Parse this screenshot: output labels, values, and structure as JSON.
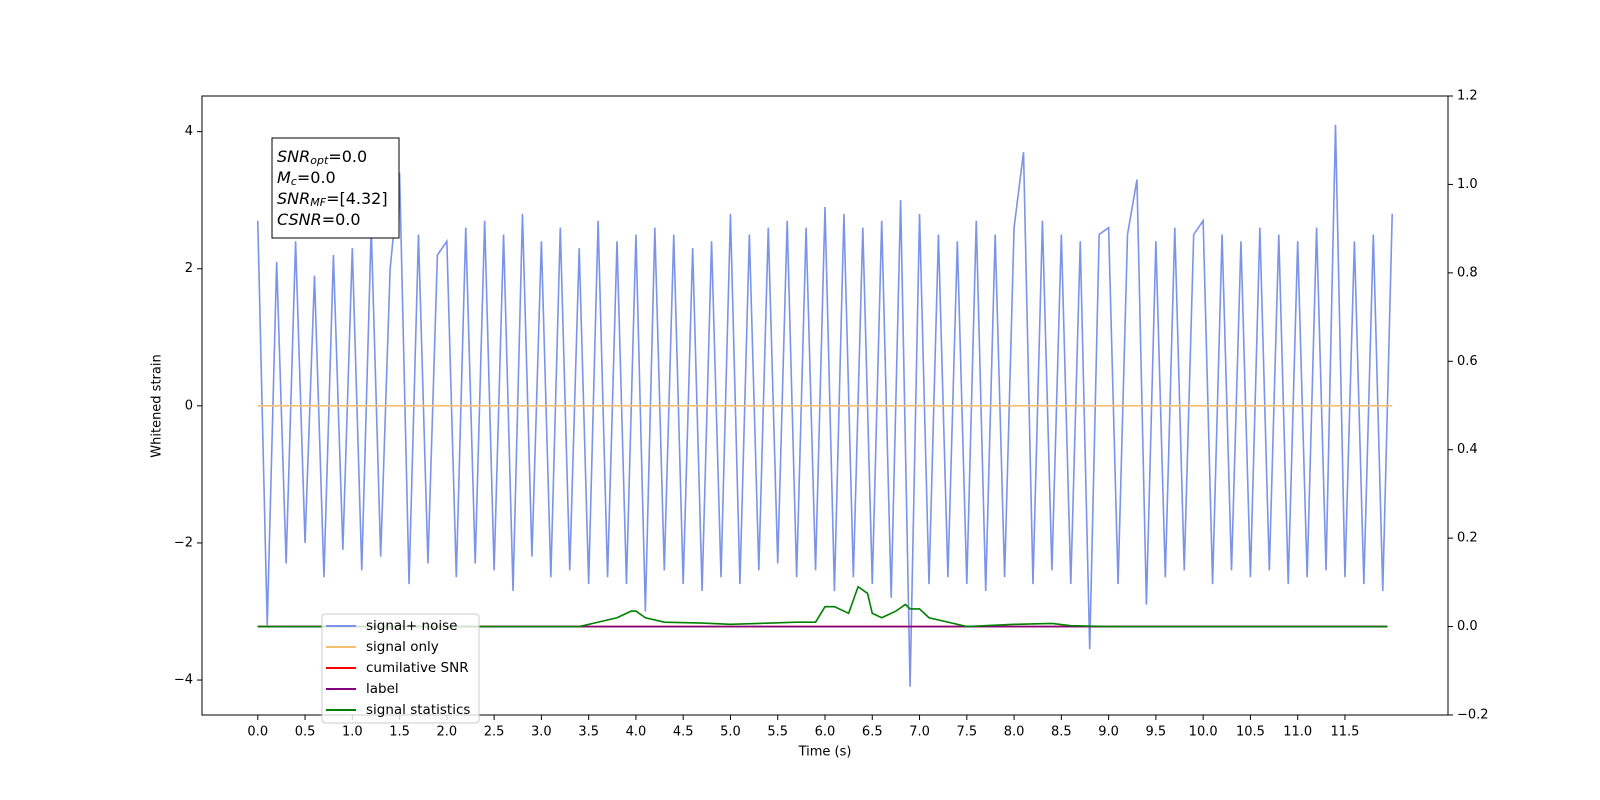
{
  "chart_data": {
    "type": "line",
    "xlabel": "Time (s)",
    "ylabel": "Whitened strain",
    "xlim": [
      -0.59,
      12.59
    ],
    "ylim": [
      -4.51,
      4.52
    ],
    "y2lim": [
      -0.2,
      1.2
    ],
    "xticks": [
      {
        "value": 0,
        "label": "0.0"
      },
      0.5,
      {
        "value": 1,
        "label": "1.0"
      },
      1.5,
      {
        "value": 2,
        "label": "2.0"
      },
      2.5,
      {
        "value": 3,
        "label": "3.0"
      },
      3.5,
      {
        "value": 4,
        "label": "4.0"
      },
      4.5,
      {
        "value": 5,
        "label": "5.0"
      },
      5.5,
      {
        "value": 6,
        "label": "6.0"
      },
      6.5,
      {
        "value": 7,
        "label": "7.0"
      },
      7.5,
      {
        "value": 8,
        "label": "8.0"
      },
      8.5,
      {
        "value": 9,
        "label": "9.0"
      },
      9.5,
      {
        "value": 10,
        "label": "10.0"
      },
      10.5,
      {
        "value": 11,
        "label": "11.0"
      },
      11.5
    ],
    "yticks": [
      {
        "value": -4,
        "label": "−4"
      },
      {
        "value": -2,
        "label": "−2"
      },
      0,
      2,
      4
    ],
    "y2ticks": [
      {
        "value": -0.2,
        "label": "−0.2"
      },
      {
        "value": 0,
        "label": "0.0"
      },
      0.2,
      0.4,
      0.6,
      0.8,
      {
        "value": 1,
        "label": "1.0"
      },
      1.2
    ],
    "legend": "lower left",
    "annotation": [
      {
        "base": "SNR",
        "sub": "opt",
        "text": "=0.0"
      },
      {
        "base": "M",
        "sub": "c",
        "text": "=0.0"
      },
      {
        "base": "SNR",
        "sub": "MF",
        "text": "=[4.32]"
      },
      {
        "base": "CSNR",
        "text": "=0.0"
      }
    ],
    "series": [
      {
        "name": "signal+ noise",
        "color": "#7b93e8",
        "x": [
          0,
          0.1,
          0.2,
          0.3,
          0.4,
          0.5,
          0.6,
          0.7,
          0.8,
          0.9,
          1,
          1.1,
          1.2,
          1.3,
          1.4,
          1.5,
          1.6,
          1.7,
          1.8,
          1.9,
          2,
          2.1,
          2.2,
          2.3,
          2.4,
          2.5,
          2.6,
          2.7,
          2.8,
          2.9,
          3,
          3.1,
          3.2,
          3.3,
          3.4,
          3.5,
          3.6,
          3.7,
          3.8,
          3.9,
          4,
          4.1,
          4.2,
          4.3,
          4.4,
          4.5,
          4.6,
          4.7,
          4.8,
          4.9,
          5,
          5.1,
          5.2,
          5.3,
          5.4,
          5.5,
          5.6,
          5.7,
          5.8,
          5.9,
          6,
          6.1,
          6.2,
          6.3,
          6.4,
          6.5,
          6.6,
          6.7,
          6.8,
          6.9,
          7,
          7.1,
          7.2,
          7.3,
          7.4,
          7.5,
          7.6,
          7.7,
          7.8,
          7.9,
          8,
          8.1,
          8.2,
          8.3,
          8.4,
          8.5,
          8.6,
          8.7,
          8.8,
          8.9,
          9,
          9.1,
          9.2,
          9.3,
          9.4,
          9.5,
          9.6,
          9.7,
          9.8,
          9.9,
          10,
          10.1,
          10.2,
          10.3,
          10.4,
          10.5,
          10.6,
          10.7,
          10.8,
          10.9,
          11,
          11.1,
          11.2,
          11.3,
          11.4,
          11.5,
          11.6,
          11.7,
          11.8,
          11.9,
          12
        ],
        "values": [
          2.7,
          -3.2,
          2.1,
          -2.3,
          2.4,
          -2.0,
          1.9,
          -2.5,
          2.2,
          -2.1,
          2.3,
          -2.4,
          2.6,
          -2.2,
          2.0,
          3.4,
          -2.6,
          2.5,
          -2.3,
          2.2,
          2.4,
          -2.5,
          2.6,
          -2.3,
          2.7,
          -2.4,
          2.5,
          -2.7,
          2.8,
          -2.2,
          2.4,
          -2.5,
          2.6,
          -2.4,
          2.3,
          -2.6,
          2.7,
          -2.5,
          2.4,
          -2.6,
          2.5,
          -3.0,
          2.6,
          -2.4,
          2.5,
          -2.6,
          2.3,
          -2.7,
          2.4,
          -2.5,
          2.8,
          -2.6,
          2.5,
          -2.4,
          2.6,
          -2.3,
          2.7,
          -2.5,
          2.6,
          -2.4,
          2.9,
          -2.7,
          2.8,
          -2.5,
          2.6,
          -2.6,
          2.7,
          -2.8,
          3.0,
          -4.1,
          2.8,
          -2.6,
          2.5,
          -2.5,
          2.4,
          -2.6,
          2.7,
          -2.7,
          2.5,
          -2.5,
          2.6,
          3.7,
          -2.6,
          2.7,
          -2.4,
          2.5,
          -2.6,
          2.4,
          -3.55,
          2.5,
          2.6,
          -2.6,
          2.5,
          3.3,
          -2.9,
          2.4,
          -2.5,
          2.6,
          -2.4,
          2.5,
          2.7,
          -2.6,
          2.5,
          -2.4,
          2.4,
          -2.5,
          2.6,
          -2.4,
          2.5,
          -2.6,
          2.4,
          -2.5,
          2.6,
          -2.4,
          4.1,
          -2.5,
          2.4,
          -2.6,
          2.5,
          -2.7,
          2.8
        ]
      },
      {
        "name": "signal only",
        "color": "#f5c06e",
        "x": [
          0,
          12
        ],
        "values": [
          0,
          0
        ]
      },
      {
        "name": "cumilative SNR",
        "color": "#ff0000",
        "axis": "y2",
        "x": [
          0,
          11.95
        ],
        "values": [
          0,
          0
        ]
      },
      {
        "name": "label",
        "color": "#800080",
        "axis": "y2",
        "x": [
          0,
          11.95
        ],
        "values": [
          0,
          0
        ]
      },
      {
        "name": "signal statistics",
        "color": "#008000",
        "axis": "y2",
        "x": [
          0,
          3.4,
          3.5,
          3.8,
          3.95,
          4.0,
          4.1,
          4.3,
          4.7,
          5.0,
          5.7,
          5.9,
          6.0,
          6.1,
          6.25,
          6.35,
          6.45,
          6.5,
          6.6,
          6.75,
          6.85,
          6.9,
          7.0,
          7.1,
          7.3,
          7.5,
          8.0,
          8.4,
          8.6,
          9.0,
          11.95
        ],
        "values": [
          0,
          0,
          0.005,
          0.02,
          0.035,
          0.035,
          0.02,
          0.01,
          0.008,
          0.005,
          0.01,
          0.01,
          0.045,
          0.045,
          0.03,
          0.09,
          0.075,
          0.03,
          0.02,
          0.035,
          0.05,
          0.04,
          0.04,
          0.02,
          0.01,
          0,
          0.005,
          0.007,
          0.002,
          0,
          0
        ]
      }
    ]
  }
}
